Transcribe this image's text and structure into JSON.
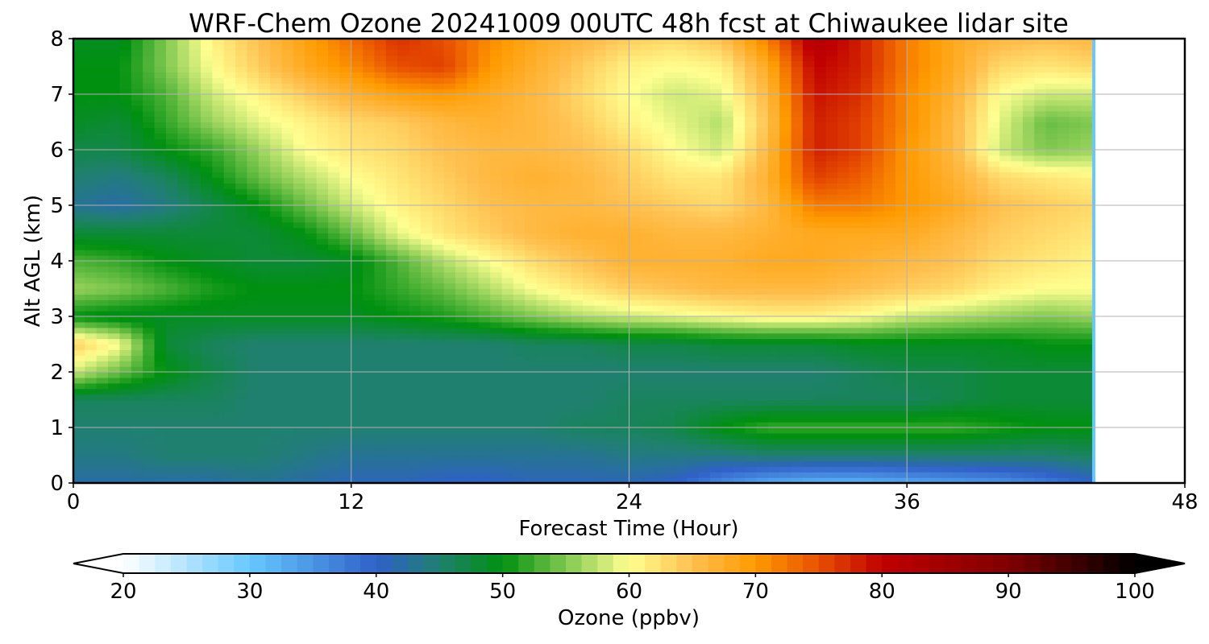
{
  "chart_data": {
    "type": "heatmap",
    "title": "WRF-Chem Ozone  20241009 00UTC 48h fcst at Chiwaukee lidar site",
    "xlabel": "Forecast Time (Hour)",
    "ylabel": "Alt AGL (km)",
    "xlim": [
      0,
      48
    ],
    "ylim": [
      0,
      8
    ],
    "xticks": [
      0,
      12,
      24,
      36,
      48
    ],
    "xtick_labels": [
      "0",
      "12",
      "24",
      "36",
      "48"
    ],
    "yticks": [
      0,
      1,
      2,
      3,
      4,
      5,
      6,
      7,
      8
    ],
    "ytick_labels": [
      "0",
      "1",
      "2",
      "3",
      "4",
      "5",
      "6",
      "7",
      "8"
    ],
    "grid": true,
    "data_end_hour": 44,
    "colorbar": {
      "label": "Ozone  (ppbv)",
      "range": [
        20,
        100
      ],
      "ticks": [
        20,
        30,
        40,
        50,
        60,
        70,
        80,
        90,
        100
      ],
      "tick_labels": [
        "20",
        "30",
        "40",
        "50",
        "60",
        "70",
        "80",
        "90",
        "100"
      ],
      "extend": "both",
      "stops": [
        {
          "value": 20,
          "color": "#ffffff"
        },
        {
          "value": 30,
          "color": "#66c8ff"
        },
        {
          "value": 40,
          "color": "#3060c8"
        },
        {
          "value": 45,
          "color": "#208070"
        },
        {
          "value": 50,
          "color": "#009010"
        },
        {
          "value": 55,
          "color": "#80c850"
        },
        {
          "value": 60,
          "color": "#ffff90"
        },
        {
          "value": 65,
          "color": "#ffc050"
        },
        {
          "value": 70,
          "color": "#ff9a00"
        },
        {
          "value": 75,
          "color": "#e85000"
        },
        {
          "value": 80,
          "color": "#c00000"
        },
        {
          "value": 90,
          "color": "#800000"
        },
        {
          "value": 100,
          "color": "#000000"
        }
      ]
    },
    "x_hours": [
      0,
      2,
      4,
      6,
      8,
      10,
      12,
      14,
      16,
      18,
      20,
      22,
      24,
      26,
      28,
      30,
      32,
      34,
      36,
      38,
      40,
      42,
      44
    ],
    "y_km": [
      0,
      0.5,
      1,
      1.5,
      2,
      2.5,
      3,
      3.5,
      4,
      4.5,
      5,
      5.5,
      6,
      6.5,
      7,
      7.5,
      8
    ],
    "values": [
      [
        42,
        42,
        42,
        42,
        43,
        42,
        41,
        41,
        40,
        40,
        41,
        41,
        41,
        40,
        36,
        33,
        32,
        32,
        33,
        34,
        35,
        37,
        40
      ],
      [
        44,
        44,
        45,
        45,
        45,
        44,
        43,
        43,
        43,
        43,
        43,
        43,
        44,
        44,
        44,
        45,
        45,
        45,
        45,
        45,
        45,
        45,
        46
      ],
      [
        45,
        45,
        45,
        45,
        45,
        45,
        45,
        45,
        45,
        45,
        45,
        46,
        46,
        47,
        50,
        52,
        52,
        52,
        52,
        52,
        51,
        50,
        50
      ],
      [
        46,
        46,
        46,
        46,
        45,
        45,
        45,
        45,
        45,
        45,
        45,
        45,
        46,
        46,
        46,
        46,
        46,
        46,
        46,
        47,
        48,
        48,
        48
      ],
      [
        58,
        54,
        50,
        47,
        45,
        45,
        45,
        45,
        45,
        45,
        45,
        45,
        45,
        45,
        45,
        45,
        45,
        46,
        47,
        47,
        48,
        48,
        48
      ],
      [
        64,
        60,
        48,
        46,
        45,
        45,
        45,
        45,
        45,
        45,
        46,
        46,
        47,
        47,
        48,
        48,
        48,
        49,
        49,
        49,
        49,
        50,
        50
      ],
      [
        50,
        49,
        49,
        49,
        49,
        49,
        49,
        50,
        51,
        53,
        55,
        57,
        58,
        59,
        60,
        61,
        61,
        60,
        58,
        57,
        56,
        55,
        56
      ],
      [
        56,
        55,
        53,
        51,
        50,
        50,
        50,
        52,
        54,
        57,
        60,
        62,
        64,
        65,
        66,
        66,
        66,
        65,
        64,
        63,
        61,
        60,
        60
      ],
      [
        53,
        52,
        50,
        49,
        48,
        48,
        49,
        53,
        57,
        60,
        63,
        65,
        67,
        67,
        67,
        68,
        68,
        67,
        66,
        65,
        63,
        62,
        61
      ],
      [
        48,
        48,
        48,
        48,
        48,
        50,
        54,
        59,
        62,
        64,
        66,
        67,
        67,
        66,
        66,
        67,
        68,
        68,
        68,
        66,
        64,
        63,
        62
      ],
      [
        43,
        42,
        44,
        47,
        50,
        54,
        58,
        61,
        63,
        65,
        66,
        66,
        65,
        64,
        63,
        66,
        72,
        72,
        70,
        68,
        65,
        64,
        63
      ],
      [
        45,
        44,
        46,
        50,
        54,
        57,
        60,
        62,
        64,
        66,
        67,
        66,
        64,
        62,
        62,
        67,
        76,
        74,
        70,
        67,
        63,
        62,
        61
      ],
      [
        47,
        47,
        50,
        52,
        56,
        60,
        62,
        63,
        65,
        66,
        66,
        65,
        63,
        60,
        58,
        66,
        78,
        76,
        70,
        66,
        58,
        55,
        56
      ],
      [
        49,
        48,
        52,
        56,
        59,
        61,
        63,
        64,
        66,
        67,
        66,
        64,
        61,
        59,
        57,
        65,
        78,
        76,
        71,
        66,
        59,
        54,
        55
      ],
      [
        50,
        50,
        53,
        58,
        61,
        64,
        67,
        69,
        70,
        68,
        66,
        63,
        60,
        58,
        59,
        66,
        79,
        77,
        71,
        67,
        60,
        58,
        58
      ],
      [
        50,
        50,
        55,
        60,
        64,
        68,
        71,
        75,
        76,
        70,
        67,
        64,
        61,
        60,
        61,
        68,
        80,
        78,
        72,
        68,
        63,
        62,
        63
      ],
      [
        49,
        49,
        55,
        61,
        65,
        69,
        73,
        77,
        75,
        71,
        68,
        66,
        64,
        63,
        65,
        72,
        82,
        78,
        72,
        68,
        66,
        65,
        66
      ]
    ]
  }
}
